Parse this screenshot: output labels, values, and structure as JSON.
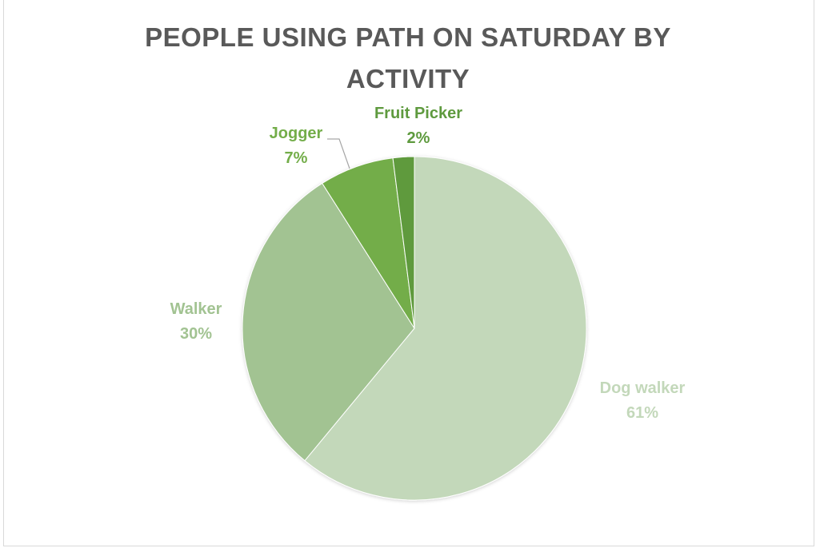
{
  "chart_data": {
    "type": "pie",
    "title_lines": [
      "PEOPLE USING PATH ON SATURDAY BY",
      "ACTIVITY"
    ],
    "slices": [
      {
        "label": "Dog walker",
        "value": 61,
        "display": "61%",
        "color": "#c3d8ba",
        "text_color": "#c3d8ba"
      },
      {
        "label": "Walker",
        "value": 30,
        "display": "30%",
        "color": "#a2c392",
        "text_color": "#a2c392"
      },
      {
        "label": "Jogger",
        "value": 7,
        "display": "7%",
        "color": "#73ad49",
        "text_color": "#73ad49"
      },
      {
        "label": "Fruit Picker",
        "value": 2,
        "display": "2%",
        "color": "#5e9a3e",
        "text_color": "#5e9a3e"
      }
    ],
    "start_angle_deg": 0,
    "direction": "clockwise",
    "legend": "none",
    "label_style": "outside-with-leader"
  }
}
